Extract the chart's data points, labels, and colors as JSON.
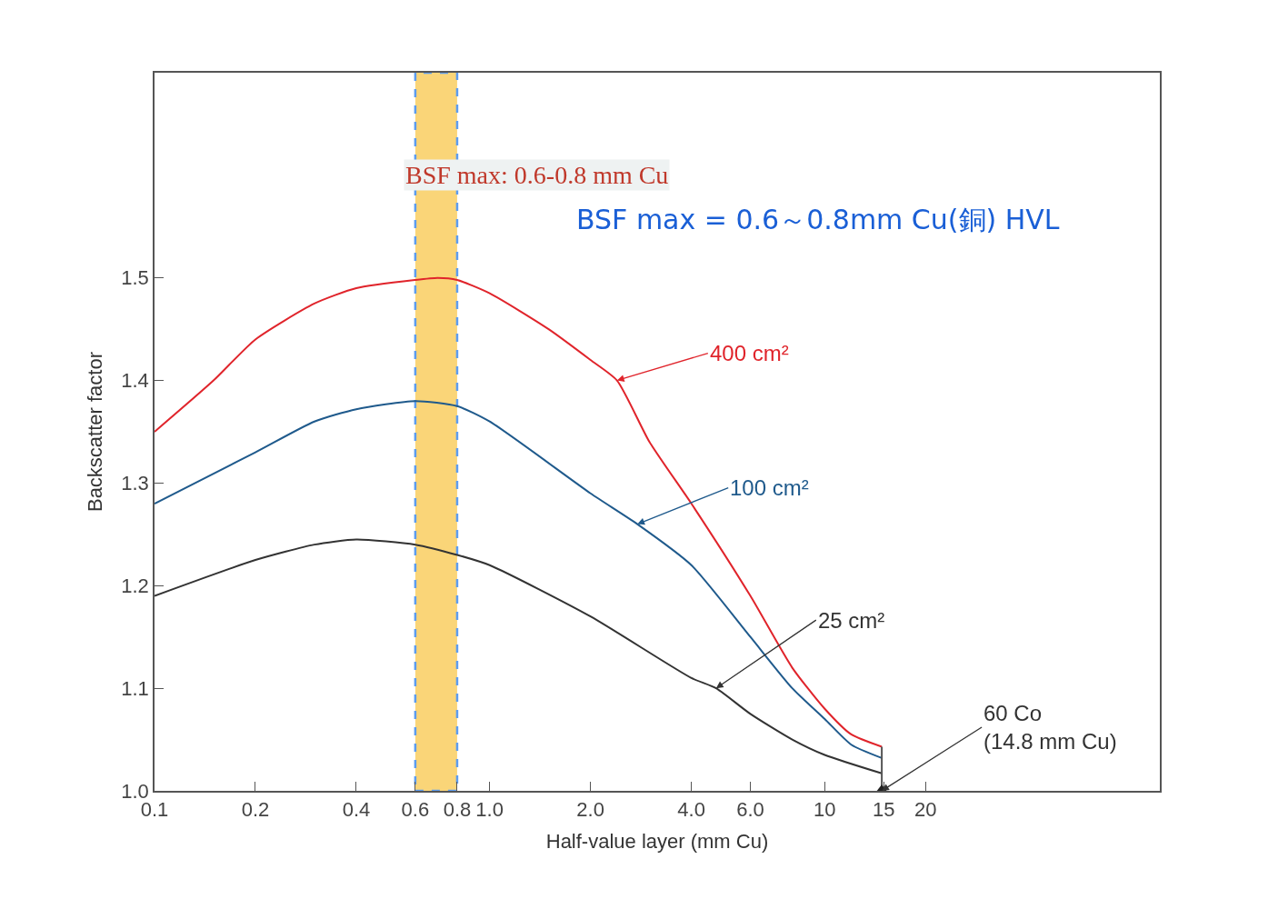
{
  "chart_data": {
    "type": "line",
    "xlabel": "Half-value layer (mm Cu)",
    "ylabel": "Backscatter factor",
    "log": "x",
    "xlim": [
      0.1,
      100
    ],
    "xticks": [
      {
        "value": 0.1,
        "label": "0.1"
      },
      {
        "value": 0.2,
        "label": "0.2"
      },
      {
        "value": 0.4,
        "label": "0.4"
      },
      {
        "value": 0.6,
        "label": "0.6"
      },
      {
        "value": 0.8,
        "label": "0.8"
      },
      {
        "value": 1,
        "label": "1.0"
      },
      {
        "value": 2,
        "label": "2.0"
      },
      {
        "value": 4,
        "label": "4.0"
      },
      {
        "value": 6,
        "label": "6.0"
      },
      10,
      15,
      20
    ],
    "ylim": [
      1.0,
      1.7
    ],
    "yticks": [
      {
        "value": 1.0,
        "label": "1.0"
      },
      1.1,
      1.2,
      1.3,
      1.4,
      1.5
    ],
    "grid": false,
    "marker": "none",
    "line_style": "solid",
    "series": [
      {
        "color": "#e0242b",
        "x": [
          0.1,
          0.15,
          0.2,
          0.3,
          0.4,
          0.6,
          0.7,
          0.8,
          1.0,
          1.5,
          2.0,
          2.4,
          3.0,
          4.0,
          6.0,
          8.0,
          10,
          12,
          14.8
        ],
        "values": [
          1.35,
          1.4,
          1.44,
          1.475,
          1.49,
          1.498,
          1.5,
          1.498,
          1.485,
          1.45,
          1.42,
          1.4,
          1.34,
          1.28,
          1.19,
          1.12,
          1.08,
          1.055,
          1.043
        ]
      },
      {
        "color": "#1f5a8c",
        "x": [
          0.1,
          0.2,
          0.3,
          0.4,
          0.6,
          0.8,
          1.0,
          2.0,
          2.76,
          4.0,
          6.0,
          8.0,
          10,
          12,
          14.8
        ],
        "values": [
          1.28,
          1.33,
          1.36,
          1.372,
          1.38,
          1.375,
          1.36,
          1.29,
          1.26,
          1.22,
          1.15,
          1.1,
          1.07,
          1.045,
          1.032
        ]
      },
      {
        "color": "#333333",
        "x": [
          0.1,
          0.2,
          0.3,
          0.4,
          0.6,
          0.8,
          1.0,
          2.0,
          4.0,
          4.74,
          6.0,
          8.0,
          10,
          14.8
        ],
        "values": [
          1.19,
          1.225,
          1.24,
          1.245,
          1.24,
          1.23,
          1.22,
          1.17,
          1.11,
          1.1,
          1.075,
          1.05,
          1.035,
          1.017
        ]
      },
      {
        "color": "#555555",
        "x": [
          14.8,
          14.8
        ],
        "values": [
          1.0,
          1.043
        ]
      },
      {
        "type": "scatter",
        "marker": "triangle",
        "color": "#222222",
        "x": [
          14.8
        ],
        "values": [
          1.0
        ]
      }
    ],
    "bands": [
      {
        "axis": "x",
        "from": 0.6,
        "to": 0.8,
        "color": "#f9c440"
      }
    ],
    "annotations": [
      {
        "text": "400 cm²",
        "x": 2.4,
        "y": 1.4
      },
      {
        "text": "100 cm²",
        "x": 2.76,
        "y": 1.26
      },
      {
        "text": "25 cm²",
        "x": 4.74,
        "y": 1.1
      },
      {
        "text": "60 Co\n(14.8 mm Cu)",
        "x": 14.8,
        "y": 1.0
      },
      "BSF max: 0.6-0.8 mm Cu",
      "BSF max = 0.6～0.8mm Cu(銅) HVL"
    ]
  }
}
